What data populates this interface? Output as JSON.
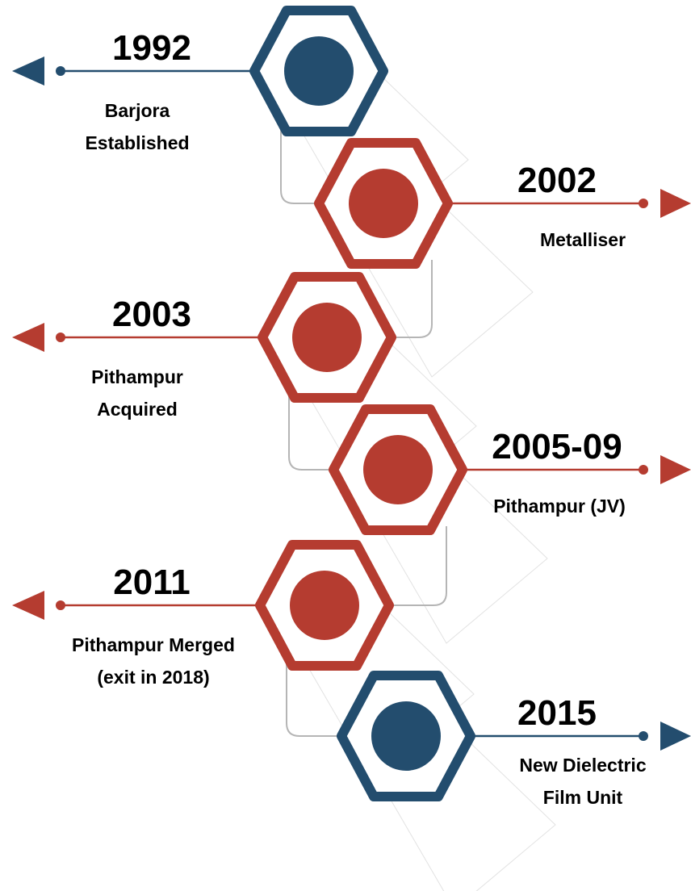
{
  "milestones": [
    {
      "year": "1992",
      "label": [
        "Barjora",
        "Established"
      ],
      "color": "#234d6e"
    },
    {
      "year": "2002",
      "label": [
        "Metalliser"
      ],
      "color": "#b53c30"
    },
    {
      "year": "2003",
      "label": [
        "Pithampur",
        "Acquired"
      ],
      "color": "#b53c30"
    },
    {
      "year": "2005-09",
      "label": [
        "Pithampur (JV)"
      ],
      "color": "#b53c30"
    },
    {
      "year": "2011",
      "label": [
        "Pithampur Merged",
        "(exit in 2018)"
      ],
      "color": "#b53c30"
    },
    {
      "year": "2015",
      "label": [
        "New Dielectric",
        "Film Unit"
      ],
      "color": "#234d6e"
    }
  ]
}
